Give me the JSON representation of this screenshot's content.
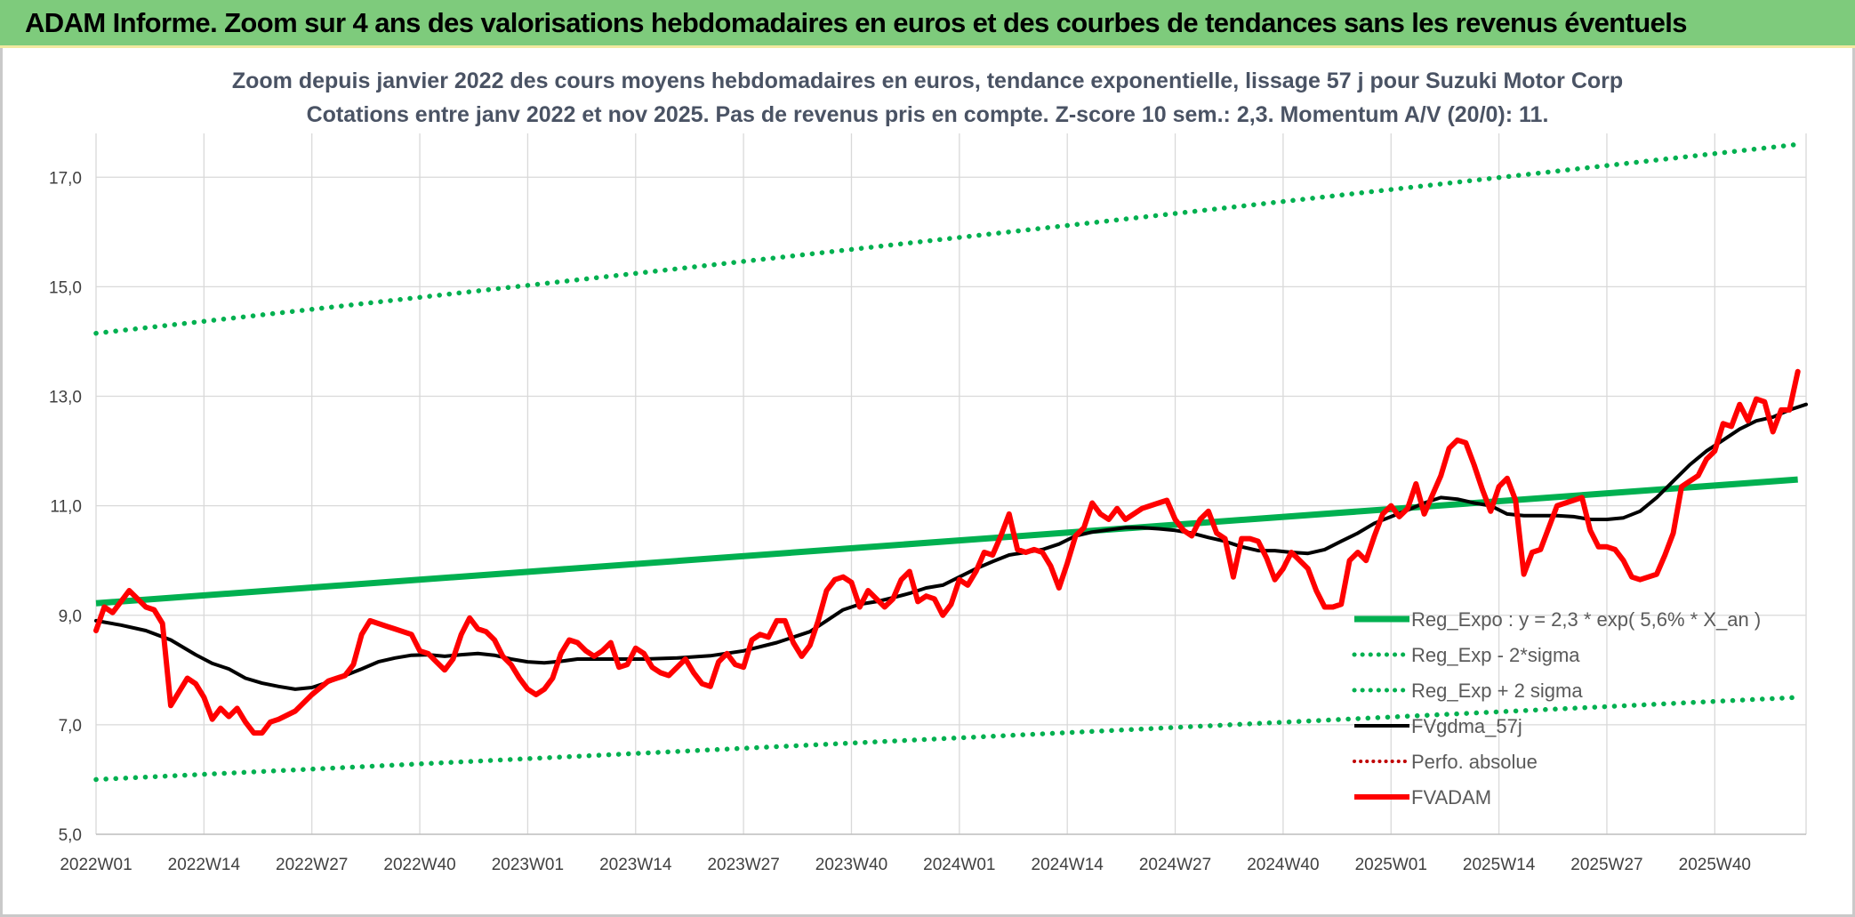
{
  "banner": {
    "title": "ADAM Informe. Zoom sur 4 ans des valorisations hebdomadaires en euros et des courbes de tendances sans les revenus éventuels"
  },
  "colors": {
    "banner_bg": "#7ecb7c",
    "trend": "#00b050",
    "ma": "#000000",
    "price": "#ff0000",
    "perf": "#c00000",
    "grid": "#d9d9d9"
  },
  "chart_data": {
    "type": "line",
    "title": [
      "Zoom depuis janvier 2022 des cours moyens hebdomadaires en euros, tendance exponentielle, lissage 57 j pour Suzuki Motor Corp",
      "Cotations entre janv 2022 et nov 2025. Pas de revenus pris en compte. Z-score 10 sem.: 2,3. Momentum A/V (20/0): 11."
    ],
    "ylim": [
      5,
      17.8
    ],
    "y_ticks": [
      "5,0",
      "7,0",
      "9,0",
      "11,0",
      "13,0",
      "15,0",
      "17,0"
    ],
    "y_tick_values": [
      5,
      7,
      9,
      11,
      13,
      15,
      17
    ],
    "x_ticks": [
      "2022W01",
      "2022W14",
      "2022W27",
      "2022W40",
      "2023W01",
      "2023W14",
      "2023W27",
      "2023W40",
      "2024W01",
      "2024W14",
      "2024W27",
      "2024W40",
      "2025W01",
      "2025W14",
      "2025W27",
      "2025W40"
    ],
    "x_tick_index": [
      0,
      13,
      26,
      39,
      52,
      65,
      78,
      91,
      104,
      117,
      130,
      143,
      156,
      169,
      182,
      195
    ],
    "n_weeks": 206,
    "legend": [
      {
        "label": "Reg_Expo : y = 2,3 * exp( 5,6% *  X_an )",
        "style": "trend"
      },
      {
        "label": "Reg_Exp - 2*sigma",
        "style": "dotted-green"
      },
      {
        "label": "Reg_Exp + 2 sigma",
        "style": "dotted-green"
      },
      {
        "label": "FVgdma_57j",
        "style": "ma"
      },
      {
        "label": "Perfo. absolue",
        "style": "dotted-red"
      },
      {
        "label": "FVADAM",
        "style": "price"
      }
    ],
    "series": [
      {
        "name": "Reg_Expo",
        "from": 9.22,
        "to": 11.48
      },
      {
        "name": "Reg_Exp - 2*sigma",
        "from": 6.0,
        "to": 7.5
      },
      {
        "name": "Reg_Exp + 2 sigma",
        "from": 14.15,
        "to": 17.6
      },
      {
        "name": "FVgdma_57j",
        "points": [
          [
            0,
            8.9
          ],
          [
            3,
            8.82
          ],
          [
            6,
            8.72
          ],
          [
            9,
            8.55
          ],
          [
            12,
            8.28
          ],
          [
            14,
            8.12
          ],
          [
            16,
            8.02
          ],
          [
            18,
            7.85
          ],
          [
            20,
            7.76
          ],
          [
            22,
            7.7
          ],
          [
            24,
            7.65
          ],
          [
            26,
            7.68
          ],
          [
            28,
            7.78
          ],
          [
            30,
            7.9
          ],
          [
            32,
            8.02
          ],
          [
            34,
            8.15
          ],
          [
            36,
            8.22
          ],
          [
            38,
            8.27
          ],
          [
            40,
            8.28
          ],
          [
            42,
            8.25
          ],
          [
            44,
            8.28
          ],
          [
            46,
            8.3
          ],
          [
            48,
            8.27
          ],
          [
            50,
            8.2
          ],
          [
            52,
            8.15
          ],
          [
            54,
            8.13
          ],
          [
            56,
            8.16
          ],
          [
            58,
            8.2
          ],
          [
            62,
            8.2
          ],
          [
            66,
            8.2
          ],
          [
            70,
            8.22
          ],
          [
            74,
            8.26
          ],
          [
            78,
            8.35
          ],
          [
            82,
            8.5
          ],
          [
            86,
            8.7
          ],
          [
            88,
            8.9
          ],
          [
            90,
            9.1
          ],
          [
            92,
            9.2
          ],
          [
            94,
            9.25
          ],
          [
            96,
            9.32
          ],
          [
            98,
            9.4
          ],
          [
            100,
            9.5
          ],
          [
            102,
            9.55
          ],
          [
            104,
            9.7
          ],
          [
            106,
            9.85
          ],
          [
            108,
            9.98
          ],
          [
            110,
            10.1
          ],
          [
            112,
            10.15
          ],
          [
            114,
            10.2
          ],
          [
            116,
            10.3
          ],
          [
            118,
            10.45
          ],
          [
            120,
            10.52
          ],
          [
            122,
            10.56
          ],
          [
            124,
            10.6
          ],
          [
            126,
            10.6
          ],
          [
            128,
            10.58
          ],
          [
            130,
            10.55
          ],
          [
            132,
            10.5
          ],
          [
            134,
            10.42
          ],
          [
            136,
            10.35
          ],
          [
            138,
            10.25
          ],
          [
            140,
            10.18
          ],
          [
            142,
            10.18
          ],
          [
            144,
            10.15
          ],
          [
            146,
            10.13
          ],
          [
            148,
            10.2
          ],
          [
            150,
            10.35
          ],
          [
            152,
            10.5
          ],
          [
            154,
            10.68
          ],
          [
            156,
            10.8
          ],
          [
            158,
            10.92
          ],
          [
            160,
            11.05
          ],
          [
            162,
            11.15
          ],
          [
            164,
            11.12
          ],
          [
            166,
            11.05
          ],
          [
            168,
            11.0
          ],
          [
            170,
            10.85
          ],
          [
            172,
            10.82
          ],
          [
            174,
            10.82
          ],
          [
            176,
            10.82
          ],
          [
            178,
            10.8
          ],
          [
            180,
            10.75
          ],
          [
            182,
            10.75
          ],
          [
            184,
            10.78
          ],
          [
            186,
            10.9
          ],
          [
            188,
            11.15
          ],
          [
            190,
            11.45
          ],
          [
            192,
            11.75
          ],
          [
            194,
            12.0
          ],
          [
            196,
            12.2
          ],
          [
            198,
            12.4
          ],
          [
            200,
            12.55
          ],
          [
            202,
            12.62
          ],
          [
            204,
            12.75
          ],
          [
            206,
            12.85
          ]
        ]
      },
      {
        "name": "FVADAM",
        "points": [
          [
            0,
            8.72
          ],
          [
            1,
            9.15
          ],
          [
            2,
            9.05
          ],
          [
            3,
            9.25
          ],
          [
            4,
            9.45
          ],
          [
            5,
            9.3
          ],
          [
            6,
            9.15
          ],
          [
            7,
            9.1
          ],
          [
            8,
            8.85
          ],
          [
            9,
            7.35
          ],
          [
            10,
            7.6
          ],
          [
            11,
            7.85
          ],
          [
            12,
            7.75
          ],
          [
            13,
            7.5
          ],
          [
            14,
            7.1
          ],
          [
            15,
            7.3
          ],
          [
            16,
            7.15
          ],
          [
            17,
            7.3
          ],
          [
            18,
            7.05
          ],
          [
            19,
            6.85
          ],
          [
            20,
            6.85
          ],
          [
            21,
            7.05
          ],
          [
            22,
            7.1
          ],
          [
            24,
            7.25
          ],
          [
            26,
            7.55
          ],
          [
            28,
            7.8
          ],
          [
            30,
            7.9
          ],
          [
            31,
            8.1
          ],
          [
            32,
            8.65
          ],
          [
            33,
            8.9
          ],
          [
            34,
            8.85
          ],
          [
            35,
            8.8
          ],
          [
            36,
            8.75
          ],
          [
            38,
            8.65
          ],
          [
            39,
            8.35
          ],
          [
            40,
            8.3
          ],
          [
            41,
            8.15
          ],
          [
            42,
            8.0
          ],
          [
            43,
            8.2
          ],
          [
            44,
            8.65
          ],
          [
            45,
            8.95
          ],
          [
            46,
            8.75
          ],
          [
            47,
            8.7
          ],
          [
            48,
            8.55
          ],
          [
            49,
            8.25
          ],
          [
            50,
            8.1
          ],
          [
            51,
            7.85
          ],
          [
            52,
            7.65
          ],
          [
            53,
            7.55
          ],
          [
            54,
            7.65
          ],
          [
            55,
            7.85
          ],
          [
            56,
            8.3
          ],
          [
            57,
            8.55
          ],
          [
            58,
            8.5
          ],
          [
            59,
            8.35
          ],
          [
            60,
            8.25
          ],
          [
            61,
            8.35
          ],
          [
            62,
            8.5
          ],
          [
            63,
            8.05
          ],
          [
            64,
            8.1
          ],
          [
            65,
            8.4
          ],
          [
            66,
            8.3
          ],
          [
            67,
            8.05
          ],
          [
            68,
            7.95
          ],
          [
            69,
            7.9
          ],
          [
            70,
            8.05
          ],
          [
            71,
            8.2
          ],
          [
            72,
            7.95
          ],
          [
            73,
            7.75
          ],
          [
            74,
            7.7
          ],
          [
            75,
            8.15
          ],
          [
            76,
            8.3
          ],
          [
            77,
            8.1
          ],
          [
            78,
            8.05
          ],
          [
            79,
            8.55
          ],
          [
            80,
            8.65
          ],
          [
            81,
            8.6
          ],
          [
            82,
            8.9
          ],
          [
            83,
            8.9
          ],
          [
            84,
            8.5
          ],
          [
            85,
            8.25
          ],
          [
            86,
            8.45
          ],
          [
            87,
            8.9
          ],
          [
            88,
            9.45
          ],
          [
            89,
            9.65
          ],
          [
            90,
            9.7
          ],
          [
            91,
            9.6
          ],
          [
            92,
            9.15
          ],
          [
            93,
            9.45
          ],
          [
            94,
            9.3
          ],
          [
            95,
            9.15
          ],
          [
            96,
            9.3
          ],
          [
            97,
            9.65
          ],
          [
            98,
            9.8
          ],
          [
            99,
            9.25
          ],
          [
            100,
            9.35
          ],
          [
            101,
            9.3
          ],
          [
            102,
            9.0
          ],
          [
            103,
            9.2
          ],
          [
            104,
            9.65
          ],
          [
            105,
            9.55
          ],
          [
            106,
            9.8
          ],
          [
            107,
            10.15
          ],
          [
            108,
            10.1
          ],
          [
            109,
            10.45
          ],
          [
            110,
            10.85
          ],
          [
            111,
            10.2
          ],
          [
            112,
            10.15
          ],
          [
            113,
            10.2
          ],
          [
            114,
            10.15
          ],
          [
            115,
            9.9
          ],
          [
            116,
            9.5
          ],
          [
            117,
            9.95
          ],
          [
            118,
            10.45
          ],
          [
            119,
            10.6
          ],
          [
            120,
            11.05
          ],
          [
            121,
            10.85
          ],
          [
            122,
            10.75
          ],
          [
            123,
            10.95
          ],
          [
            124,
            10.75
          ],
          [
            125,
            10.85
          ],
          [
            126,
            10.95
          ],
          [
            127,
            11.0
          ],
          [
            128,
            11.05
          ],
          [
            129,
            11.1
          ],
          [
            130,
            10.75
          ],
          [
            131,
            10.55
          ],
          [
            132,
            10.45
          ],
          [
            133,
            10.75
          ],
          [
            134,
            10.9
          ],
          [
            135,
            10.5
          ],
          [
            136,
            10.4
          ],
          [
            137,
            9.7
          ],
          [
            138,
            10.4
          ],
          [
            139,
            10.4
          ],
          [
            140,
            10.35
          ],
          [
            141,
            10.05
          ],
          [
            142,
            9.65
          ],
          [
            143,
            9.85
          ],
          [
            144,
            10.15
          ],
          [
            145,
            10.0
          ],
          [
            146,
            9.85
          ],
          [
            147,
            9.45
          ],
          [
            148,
            9.15
          ],
          [
            149,
            9.15
          ],
          [
            150,
            9.2
          ],
          [
            151,
            10.0
          ],
          [
            152,
            10.15
          ],
          [
            153,
            10.0
          ],
          [
            154,
            10.45
          ],
          [
            155,
            10.85
          ],
          [
            156,
            11.0
          ],
          [
            157,
            10.8
          ],
          [
            158,
            10.95
          ],
          [
            159,
            11.4
          ],
          [
            160,
            10.85
          ],
          [
            161,
            11.2
          ],
          [
            162,
            11.55
          ],
          [
            163,
            12.05
          ],
          [
            164,
            12.2
          ],
          [
            165,
            12.15
          ],
          [
            166,
            11.75
          ],
          [
            167,
            11.3
          ],
          [
            168,
            10.9
          ],
          [
            169,
            11.35
          ],
          [
            170,
            11.5
          ],
          [
            171,
            11.1
          ],
          [
            172,
            9.75
          ],
          [
            173,
            10.15
          ],
          [
            174,
            10.2
          ],
          [
            175,
            10.6
          ],
          [
            176,
            11.0
          ],
          [
            178,
            11.1
          ],
          [
            179,
            11.15
          ],
          [
            180,
            10.55
          ],
          [
            181,
            10.25
          ],
          [
            182,
            10.25
          ],
          [
            183,
            10.2
          ],
          [
            184,
            10.0
          ],
          [
            185,
            9.7
          ],
          [
            186,
            9.65
          ],
          [
            187,
            9.7
          ],
          [
            188,
            9.75
          ],
          [
            189,
            10.1
          ],
          [
            190,
            10.5
          ],
          [
            191,
            11.35
          ],
          [
            192,
            11.45
          ],
          [
            193,
            11.55
          ],
          [
            194,
            11.85
          ],
          [
            195,
            12.0
          ],
          [
            196,
            12.5
          ],
          [
            197,
            12.45
          ],
          [
            198,
            12.85
          ],
          [
            199,
            12.55
          ],
          [
            200,
            12.95
          ],
          [
            201,
            12.9
          ],
          [
            202,
            12.35
          ],
          [
            203,
            12.75
          ],
          [
            204,
            12.75
          ],
          [
            205,
            13.45
          ]
        ]
      }
    ]
  }
}
